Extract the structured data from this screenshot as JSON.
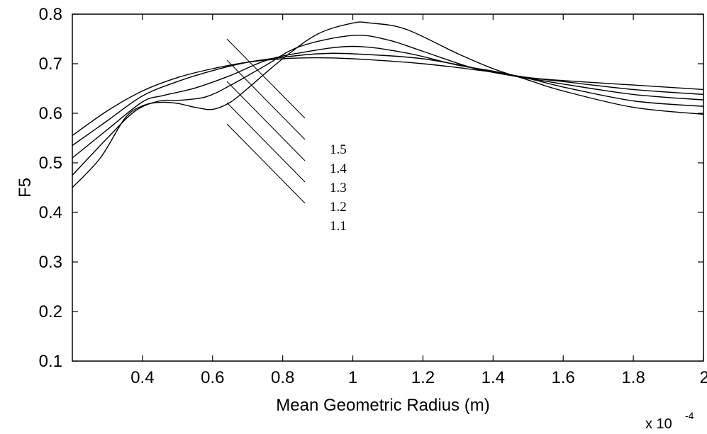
{
  "chart_data": {
    "type": "line",
    "title": "",
    "xlabel": "Mean Geometric Radius (m)",
    "ylabel": "F5",
    "x_multiplier_label": "x 10",
    "x_multiplier_exponent": "-4",
    "xlim": [
      0.2,
      2.0
    ],
    "ylim": [
      0.1,
      0.8
    ],
    "x_ticks": [
      0.4,
      0.6,
      0.8,
      1.0,
      1.2,
      1.4,
      1.6,
      1.8,
      2.0
    ],
    "x_tick_labels": [
      "0.4",
      "0.6",
      "0.8",
      "1",
      "1.2",
      "1.4",
      "1.6",
      "1.8",
      "2"
    ],
    "y_ticks": [
      0.1,
      0.2,
      0.3,
      0.4,
      0.5,
      0.6,
      0.7,
      0.8
    ],
    "y_tick_labels": [
      "0.1",
      "0.2",
      "0.3",
      "0.4",
      "0.5",
      "0.6",
      "0.7",
      "0.8"
    ],
    "grid": false,
    "legend": "none",
    "annotations": [
      "1.5",
      "1.4",
      "1.3",
      "1.2",
      "1.1"
    ],
    "series": [
      {
        "name": "1.5",
        "color": "#000000",
        "points": [
          [
            0.2,
            0.555
          ],
          [
            0.3,
            0.605
          ],
          [
            0.4,
            0.645
          ],
          [
            0.5,
            0.672
          ],
          [
            0.6,
            0.69
          ],
          [
            0.7,
            0.703
          ],
          [
            0.8,
            0.71
          ],
          [
            0.9,
            0.712
          ],
          [
            1.0,
            0.71
          ],
          [
            1.2,
            0.7
          ],
          [
            1.4,
            0.683
          ],
          [
            1.5,
            0.672
          ],
          [
            1.6,
            0.666
          ],
          [
            1.8,
            0.657
          ],
          [
            2.0,
            0.648
          ]
        ]
      },
      {
        "name": "1.4",
        "color": "#000000",
        "points": [
          [
            0.2,
            0.535
          ],
          [
            0.3,
            0.585
          ],
          [
            0.4,
            0.635
          ],
          [
            0.5,
            0.664
          ],
          [
            0.6,
            0.686
          ],
          [
            0.7,
            0.703
          ],
          [
            0.8,
            0.713
          ],
          [
            0.9,
            0.72
          ],
          [
            1.0,
            0.72
          ],
          [
            1.2,
            0.71
          ],
          [
            1.4,
            0.684
          ],
          [
            1.5,
            0.672
          ],
          [
            1.6,
            0.664
          ],
          [
            1.8,
            0.648
          ],
          [
            2.0,
            0.638
          ]
        ]
      },
      {
        "name": "1.3",
        "color": "#000000",
        "points": [
          [
            0.2,
            0.51
          ],
          [
            0.3,
            0.567
          ],
          [
            0.4,
            0.623
          ],
          [
            0.46,
            0.636
          ],
          [
            0.55,
            0.651
          ],
          [
            0.65,
            0.676
          ],
          [
            0.75,
            0.706
          ],
          [
            0.85,
            0.722
          ],
          [
            1.0,
            0.735
          ],
          [
            1.15,
            0.722
          ],
          [
            1.3,
            0.697
          ],
          [
            1.4,
            0.685
          ],
          [
            1.5,
            0.671
          ],
          [
            1.6,
            0.659
          ],
          [
            1.8,
            0.638
          ],
          [
            2.0,
            0.627
          ]
        ]
      },
      {
        "name": "1.2",
        "color": "#000000",
        "points": [
          [
            0.2,
            0.475
          ],
          [
            0.3,
            0.55
          ],
          [
            0.38,
            0.605
          ],
          [
            0.45,
            0.625
          ],
          [
            0.5,
            0.626
          ],
          [
            0.58,
            0.633
          ],
          [
            0.65,
            0.656
          ],
          [
            0.75,
            0.696
          ],
          [
            0.85,
            0.735
          ],
          [
            1.0,
            0.757
          ],
          [
            1.1,
            0.748
          ],
          [
            1.2,
            0.725
          ],
          [
            1.35,
            0.69
          ],
          [
            1.5,
            0.67
          ],
          [
            1.6,
            0.653
          ],
          [
            1.8,
            0.625
          ],
          [
            2.0,
            0.614
          ]
        ]
      },
      {
        "name": "1.1",
        "color": "#000000",
        "points": [
          [
            0.2,
            0.45
          ],
          [
            0.28,
            0.51
          ],
          [
            0.35,
            0.59
          ],
          [
            0.4,
            0.615
          ],
          [
            0.45,
            0.622
          ],
          [
            0.5,
            0.62
          ],
          [
            0.55,
            0.612
          ],
          [
            0.6,
            0.608
          ],
          [
            0.65,
            0.622
          ],
          [
            0.7,
            0.65
          ],
          [
            0.8,
            0.71
          ],
          [
            0.9,
            0.76
          ],
          [
            1.0,
            0.782
          ],
          [
            1.05,
            0.782
          ],
          [
            1.15,
            0.77
          ],
          [
            1.3,
            0.72
          ],
          [
            1.4,
            0.69
          ],
          [
            1.5,
            0.667
          ],
          [
            1.6,
            0.645
          ],
          [
            1.8,
            0.612
          ],
          [
            2.0,
            0.598
          ]
        ]
      }
    ]
  }
}
